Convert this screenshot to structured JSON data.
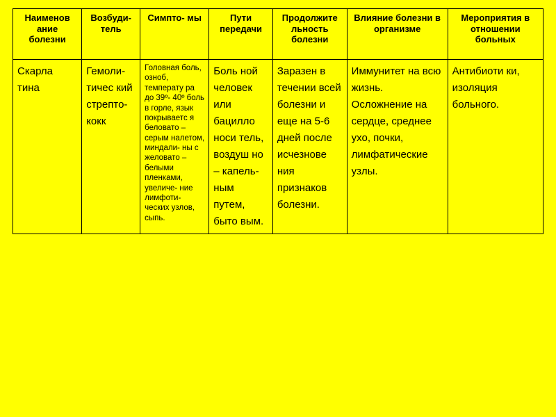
{
  "background_color": "#ffff00",
  "border_color": "#000000",
  "table": {
    "columns": [
      {
        "key": "c1",
        "header": "Наименов ание болезни",
        "width": "13%"
      },
      {
        "key": "c2",
        "header": "Возбуди- тель",
        "width": "11%"
      },
      {
        "key": "c3",
        "header": "Симпто- мы",
        "width": "13%"
      },
      {
        "key": "c4",
        "header": "Пути передачи",
        "width": "12%"
      },
      {
        "key": "c5",
        "header": "Продолжите льность болезни",
        "width": "14%"
      },
      {
        "key": "c6",
        "header": "Влияние болезни в организме",
        "width": "19%"
      },
      {
        "key": "c7",
        "header": "Мероприятия в отношении больных",
        "width": "18%"
      }
    ],
    "rows": [
      {
        "c1": "Скарла тина",
        "c2": "Гемоли- тичес кий стрепто- кокк",
        "c3": "Головная боль, озноб, температу ра до 39º- 40º боль в горле, язык покрываетс я беловато – серым налетом, миндали- ны с желовато – белыми пленками, увеличе- ние лимфоти- ческих узлов, сыпь.",
        "c4": "Боль ной человек или бацилло носи тель, воздуш но – капель- ным путем, быто вым.",
        "c5": "Заразен в течении всей болезни и еще на 5-6 дней после исчезнове ния признаков болезни.",
        "c6": "Иммунитет на всю жизнь. Осложнение на сердце, среднее ухо, почки, лимфатические узлы.",
        "c7": "Антибиоти ки, изоляция больного."
      }
    ]
  }
}
